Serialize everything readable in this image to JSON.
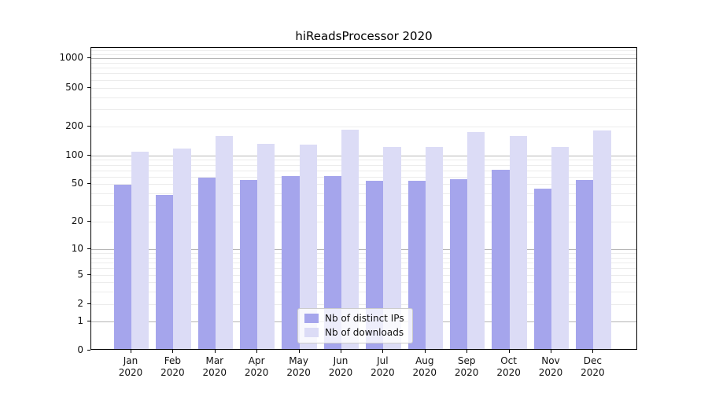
{
  "chart_data": {
    "type": "bar",
    "title": "hiReadsProcessor 2020",
    "categories": [
      "Jan",
      "Feb",
      "Mar",
      "Apr",
      "May",
      "Jun",
      "Jul",
      "Aug",
      "Sep",
      "Oct",
      "Nov",
      "Dec"
    ],
    "year_label": "2020",
    "series": [
      {
        "name": "Nb of distinct IPs",
        "color": "#a5a5ec",
        "values": [
          48,
          37,
          56,
          53,
          59,
          59,
          52,
          52,
          54,
          68,
          43,
          53
        ]
      },
      {
        "name": "Nb of downloads",
        "color": "#dcdcf6",
        "values": [
          105,
          113,
          153,
          126,
          124,
          178,
          118,
          118,
          168,
          153,
          117,
          175
        ]
      }
    ],
    "xlabel": "",
    "ylabel": "",
    "yscale": "log1p",
    "ylim": [
      0,
      1280
    ],
    "y_ticks": [
      0,
      1,
      2,
      5,
      10,
      20,
      50,
      100,
      200,
      500,
      1000
    ],
    "y_major_gridlines": [
      1,
      10,
      100,
      1000
    ],
    "y_minor_gridlines": [
      2,
      3,
      4,
      5,
      6,
      7,
      8,
      9,
      20,
      30,
      40,
      50,
      60,
      70,
      80,
      90,
      200,
      300,
      400,
      500,
      600,
      700,
      800,
      900,
      1100,
      1200
    ],
    "grid": "on",
    "legend_position": "bottom-center"
  },
  "colors": {
    "background": "#ffffff",
    "spine": "#000000",
    "grid_minor": "#ececec",
    "grid_major": "#b5b5b5",
    "tick_text": "#111111",
    "legend_border": "#cccccc"
  }
}
